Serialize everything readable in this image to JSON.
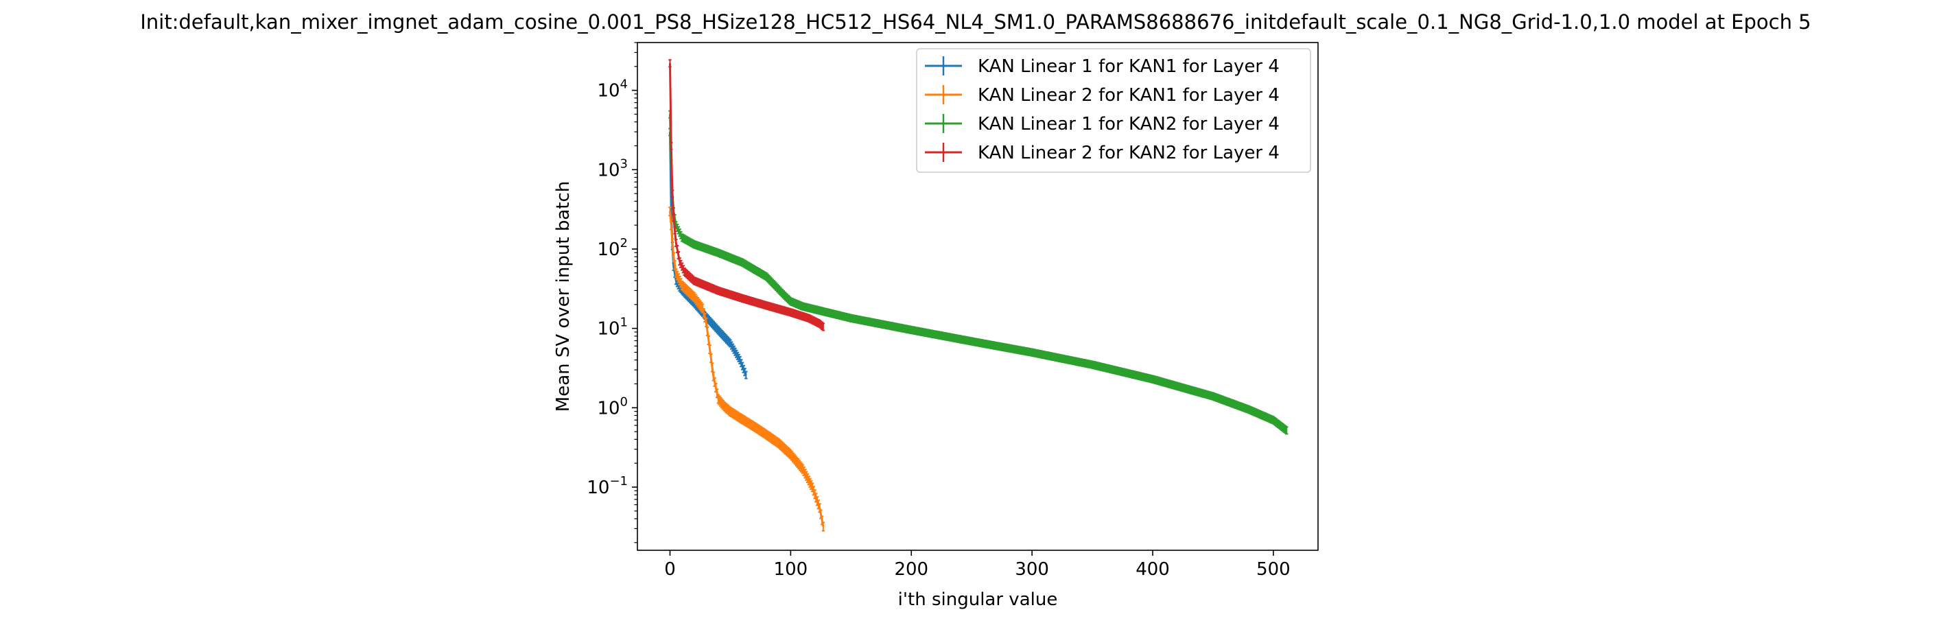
{
  "chart_data": {
    "type": "line",
    "title": "Init:default,kan_mixer_imgnet_adam_cosine_0.001_PS8_HSize128_HC512_HS64_NL4_SM1.0_PARAMS8688676_initdefault_scale_0.1_NG8_Grid-1.0,1.0 model at Epoch 5",
    "xlabel": "i'th singular value",
    "ylabel": "Mean SV over input batch",
    "xlim": [
      -27,
      537
    ],
    "ylim": [
      0.016,
      40000
    ],
    "yscale": "log",
    "grid": false,
    "legend_position": "upper right",
    "xticks": [
      {
        "value": 0,
        "label": "0"
      },
      {
        "value": 100,
        "label": "100"
      },
      {
        "value": 200,
        "label": "200"
      },
      {
        "value": 300,
        "label": "300"
      },
      {
        "value": 400,
        "label": "400"
      },
      {
        "value": 500,
        "label": "500"
      }
    ],
    "yticks": [
      {
        "value": 0.1,
        "base": "10",
        "exp": "−1"
      },
      {
        "value": 1,
        "base": "10",
        "exp": "0"
      },
      {
        "value": 10,
        "base": "10",
        "exp": "1"
      },
      {
        "value": 100,
        "base": "10",
        "exp": "2"
      },
      {
        "value": 1000,
        "base": "10",
        "exp": "3"
      },
      {
        "value": 10000,
        "base": "10",
        "exp": "4"
      }
    ],
    "series": [
      {
        "name": "KAN Linear 1 for KAN1 for Layer 4",
        "color": "#1f77b4",
        "n": 64,
        "x": [
          0,
          1,
          2,
          3,
          5,
          8,
          12,
          20,
          30,
          40,
          50,
          58,
          63
        ],
        "y": [
          3000,
          300,
          110,
          60,
          40,
          33,
          28,
          21,
          14,
          9.5,
          6.5,
          4,
          2.6
        ],
        "err_rel": 0.1
      },
      {
        "name": "KAN Linear 2 for KAN1 for Layer 4",
        "color": "#ff7f0e",
        "n": 128,
        "x": [
          0,
          1,
          2,
          3,
          5,
          10,
          20,
          27,
          30,
          33,
          36,
          40,
          45,
          50,
          60,
          70,
          80,
          90,
          100,
          110,
          118,
          124,
          127
        ],
        "y": [
          300,
          200,
          120,
          80,
          50,
          35,
          25,
          18,
          12,
          5.5,
          2.5,
          1.3,
          1.05,
          0.9,
          0.72,
          0.58,
          0.46,
          0.36,
          0.26,
          0.17,
          0.1,
          0.055,
          0.032
        ],
        "err_rel": 0.12
      },
      {
        "name": "KAN Linear 1 for KAN2 for Layer 4",
        "color": "#2ca02c",
        "n": 512,
        "x": [
          0,
          1,
          2,
          3,
          5,
          10,
          20,
          40,
          60,
          80,
          95,
          100,
          110,
          150,
          200,
          250,
          300,
          350,
          400,
          450,
          480,
          500,
          511
        ],
        "y": [
          5000,
          1200,
          500,
          300,
          200,
          140,
          115,
          90,
          68,
          45,
          26,
          22,
          19,
          13.5,
          9.6,
          6.9,
          5.0,
          3.5,
          2.3,
          1.4,
          0.95,
          0.7,
          0.52
        ],
        "err_rel": 0.1
      },
      {
        "name": "KAN Linear 2 for KAN2 for Layer 4",
        "color": "#d62728",
        "n": 128,
        "x": [
          0,
          1,
          2,
          3,
          5,
          8,
          12,
          20,
          40,
          60,
          80,
          100,
          115,
          124,
          127
        ],
        "y": [
          22000,
          2000,
          500,
          250,
          120,
          70,
          52,
          40,
          30,
          24,
          19.5,
          16,
          13.5,
          11.5,
          10.5
        ],
        "err_rel": 0.1
      }
    ]
  }
}
